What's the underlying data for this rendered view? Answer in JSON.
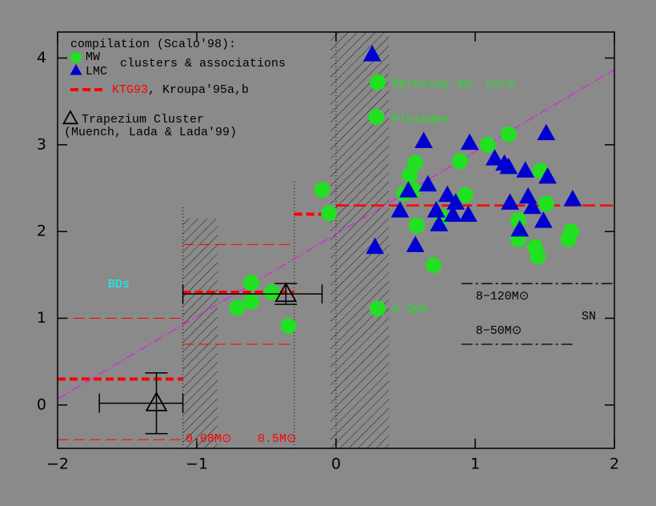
{
  "chart_data": {
    "type": "scatter",
    "xlim": [
      -2,
      2
    ],
    "ylim": [
      -0.5,
      4.3
    ],
    "xticks": [
      {
        "value": -2,
        "label": "−2"
      },
      {
        "value": -1,
        "label": "−1"
      },
      0,
      1,
      2
    ],
    "yticks": [
      0,
      1,
      2,
      3,
      4
    ],
    "series": [
      {
        "name": "MW",
        "marker": "circle",
        "color": "#22e022",
        "x": [
          0.3,
          0.29,
          0.3,
          -0.1,
          -0.05,
          -0.61,
          -0.71,
          -0.61,
          -0.46,
          -0.34,
          0.57,
          0.53,
          0.56,
          0.49,
          0.58,
          0.7,
          0.76,
          0.89,
          0.93,
          1.09,
          1.24,
          1.31,
          1.31,
          1.43,
          1.45,
          1.47,
          1.51,
          1.67,
          1.69
        ],
        "values": [
          3.72,
          3.32,
          1.11,
          2.48,
          2.21,
          1.41,
          1.12,
          1.19,
          1.3,
          0.91,
          2.79,
          2.65,
          2.48,
          2.44,
          2.07,
          1.61,
          2.17,
          2.81,
          2.42,
          3.0,
          3.12,
          2.13,
          1.91,
          1.82,
          1.71,
          2.7,
          2.32,
          1.91,
          2.0
        ]
      },
      {
        "name": "LMC",
        "marker": "triangle",
        "color": "#0000d0",
        "x": [
          0.26,
          0.28,
          0.46,
          0.52,
          0.66,
          0.57,
          0.63,
          0.8,
          0.74,
          0.72,
          0.84,
          0.86,
          0.95,
          0.96,
          1.14,
          1.21,
          1.25,
          1.32,
          1.36,
          1.38,
          1.41,
          1.49,
          1.52,
          1.51,
          1.7,
          1.24
        ],
        "values": [
          4.04,
          1.82,
          2.24,
          2.47,
          2.54,
          1.84,
          3.04,
          2.42,
          2.08,
          2.24,
          2.19,
          2.33,
          2.19,
          3.02,
          2.84,
          2.78,
          2.33,
          2.02,
          2.7,
          2.4,
          2.28,
          2.12,
          2.63,
          3.13,
          2.37,
          2.74
        ]
      },
      {
        "name": "Trapezium Cluster",
        "marker": "open-triangle",
        "color": "#000000",
        "x": [
          -1.29,
          -0.36
        ],
        "values": [
          0.02,
          1.28
        ],
        "xerr_low": [
          0.41,
          0.74
        ],
        "xerr_high": [
          0.19,
          0.26
        ],
        "yerr": [
          0.35,
          0.12
        ]
      }
    ],
    "ktg93": {
      "name": "KTG93",
      "color": "#ff0000",
      "segments": [
        {
          "x": [
            -2,
            -1.1
          ],
          "y": [
            0.3,
            0.3
          ],
          "style": "thick"
        },
        {
          "x": [
            -1.1,
            -0.3
          ],
          "y": [
            1.3,
            1.3
          ],
          "style": "thick"
        },
        {
          "x": [
            -0.3,
            0
          ],
          "y": [
            2.2,
            2.2
          ],
          "style": "thick"
        },
        {
          "x": [
            0,
            2
          ],
          "y": [
            2.3,
            2.3
          ],
          "style": "long"
        },
        {
          "x": [
            -2,
            -1.1
          ],
          "y": [
            1.0,
            1.0
          ],
          "style": "thin"
        },
        {
          "x": [
            -2,
            -1.1
          ],
          "y": [
            -0.4,
            -0.4
          ],
          "style": "thin"
        },
        {
          "x": [
            -1.1,
            -0.3
          ],
          "y": [
            1.85,
            1.85
          ],
          "style": "thin"
        },
        {
          "x": [
            -1.1,
            -0.3
          ],
          "y": [
            0.7,
            0.7
          ],
          "style": "thin"
        }
      ]
    },
    "fit_line": {
      "color": "#e020e0",
      "x": [
        -2,
        2
      ],
      "values": [
        0.07,
        3.87
      ]
    },
    "shaded": [
      {
        "xlim": [
          -1.1,
          -0.85
        ],
        "ylim": [
          -0.5,
          2.15
        ]
      },
      {
        "xlim": [
          -0.04,
          0.38
        ],
        "ylim": [
          -0.5,
          4.3
        ]
      }
    ],
    "vlines": [
      {
        "x": -1.1,
        "ymax": 2.3
      },
      {
        "x": -0.3,
        "ymax": 2.6
      },
      {
        "x": 0,
        "ymax": 4.3
      }
    ],
    "mass_ranges": [
      {
        "label": "8−120M⊙",
        "x": [
          0.9,
          2
        ],
        "y": 1.4
      },
      {
        "label": "8−50M⊙",
        "x": [
          0.9,
          1.7
        ],
        "y": 0.7
      }
    ],
    "legend": {
      "title": "compilation (Scalo'98):",
      "group_label": "clusters & associations",
      "ktg_note": ", Kroupa'95a,b",
      "trapezium_note": "(Muench, Lada & Lada'99)"
    },
    "annotations": [
      {
        "text": "Berkeley 86, core",
        "color": "#22e022"
      },
      {
        "text": "Pleiades",
        "color": "#22e022"
      },
      {
        "text": "ρ Oph",
        "color": "#22e022"
      },
      {
        "text": "BDs",
        "color": "#00ffff"
      },
      {
        "text": "SN",
        "color": "#000000"
      },
      {
        "text": "0.08M⊙",
        "color": "#ff0000"
      },
      {
        "text": "0.5M⊙",
        "color": "#ff0000"
      }
    ]
  }
}
